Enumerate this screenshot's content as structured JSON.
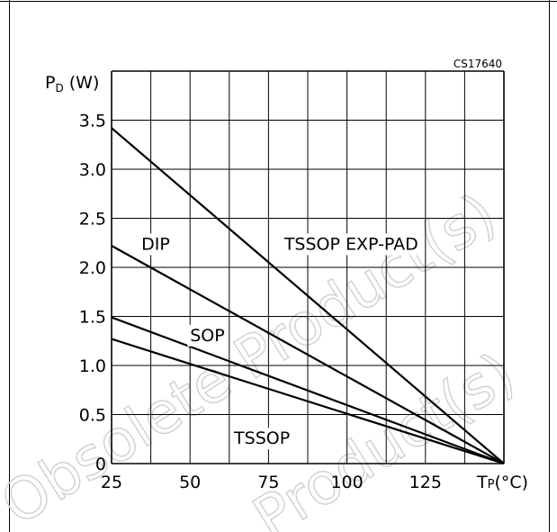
{
  "chart_data": {
    "type": "line",
    "code": "CS17640",
    "ylabel_main": "P",
    "ylabel_sub": "D",
    "ylabel_unit": " (W)",
    "xlabel_main": "T",
    "xlabel_sub": "P",
    "xlabel_unit": "(°C)",
    "xlim": [
      25,
      150
    ],
    "ylim": [
      0,
      4.0
    ],
    "grid": true,
    "x_ticks": [
      {
        "value": 25,
        "label": "25"
      },
      {
        "value": 50,
        "label": "50"
      },
      {
        "value": 75,
        "label": "75"
      },
      {
        "value": 100,
        "label": "100"
      },
      {
        "value": 125,
        "label": "125"
      }
    ],
    "y_ticks": [
      {
        "value": 0,
        "label": "0"
      },
      {
        "value": 0.5,
        "label": "0.5"
      },
      {
        "value": 1.0,
        "label": "1.0"
      },
      {
        "value": 1.5,
        "label": "1.5"
      },
      {
        "value": 2.0,
        "label": "2.0"
      },
      {
        "value": 2.5,
        "label": "2.5"
      },
      {
        "value": 3.0,
        "label": "3.0"
      },
      {
        "value": 3.5,
        "label": "3.5"
      }
    ],
    "series": [
      {
        "name": "TSSOP EXP-PAD",
        "x": [
          25,
          150
        ],
        "y": [
          3.42,
          0
        ]
      },
      {
        "name": "DIP",
        "x": [
          25,
          150
        ],
        "y": [
          2.22,
          0
        ]
      },
      {
        "name": "SOP",
        "x": [
          25,
          150
        ],
        "y": [
          1.49,
          0
        ]
      },
      {
        "name": "TSSOP",
        "x": [
          25,
          150
        ],
        "y": [
          1.27,
          0
        ]
      }
    ],
    "annotations": [
      {
        "text": "DIP",
        "x": 34.5,
        "y": 2.18
      },
      {
        "text": "TSSOP  EXP-PAD",
        "x": 80,
        "y": 2.18
      },
      {
        "text": "SOP",
        "x": 50,
        "y": 1.25
      },
      {
        "text": "TSSOP",
        "x": 64,
        "y": 0.2
      }
    ],
    "watermark": [
      "Obsolete Product(s)",
      "Product(s)"
    ]
  }
}
